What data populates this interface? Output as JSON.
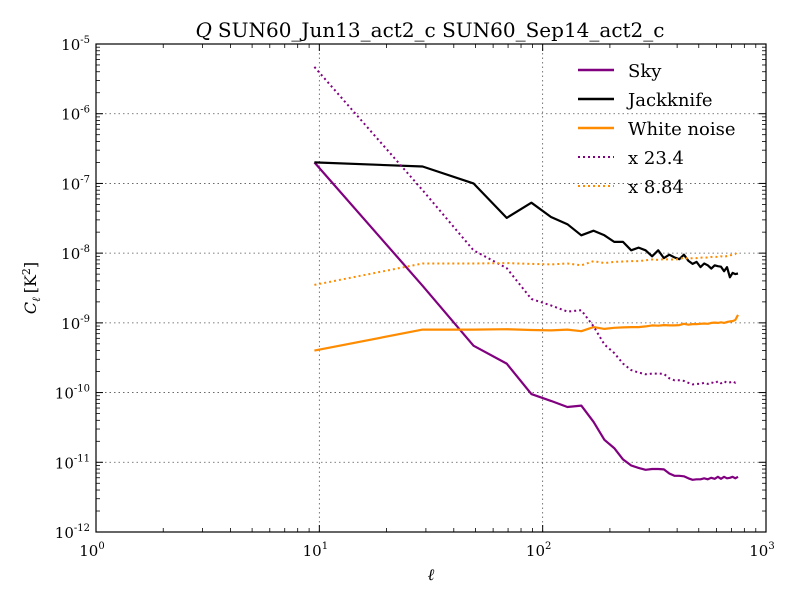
{
  "chart_data": {
    "type": "line",
    "title_symbol": "Q",
    "title_text": "SUN60_Jun13_act2_c SUN60_Sep14_act2_c",
    "xlabel": "ℓ",
    "ylabel_main": "C",
    "ylabel_sub": "ℓ",
    "ylabel_unit": "[K",
    "ylabel_unit_exp": "2",
    "ylabel_unit_close": "]",
    "x_scale": "log",
    "y_scale": "log",
    "xlim": [
      1,
      1000
    ],
    "ylim": [
      1e-12,
      1e-05
    ],
    "grid": true,
    "legend_placement": "top-right",
    "x_ticks": [
      {
        "value": 1,
        "base": "10",
        "exp": "0"
      },
      {
        "value": 10,
        "base": "10",
        "exp": "1"
      },
      {
        "value": 100,
        "base": "10",
        "exp": "2"
      },
      {
        "value": 1000,
        "base": "10",
        "exp": "3"
      }
    ],
    "y_ticks": [
      {
        "value": 1e-12,
        "base": "10",
        "exp": "-12"
      },
      {
        "value": 1e-11,
        "base": "10",
        "exp": "-11"
      },
      {
        "value": 1e-10,
        "base": "10",
        "exp": "-10"
      },
      {
        "value": 1e-09,
        "base": "10",
        "exp": "-9"
      },
      {
        "value": 1e-08,
        "base": "10",
        "exp": "-8"
      },
      {
        "value": 1e-07,
        "base": "10",
        "exp": "-7"
      },
      {
        "value": 1e-06,
        "base": "10",
        "exp": "-6"
      },
      {
        "value": 1e-05,
        "base": "10",
        "exp": "-5"
      }
    ],
    "series": [
      {
        "name": "Sky",
        "color": "#800080",
        "style": "solid",
        "x": [
          9.5,
          29,
          49,
          69,
          89,
          109,
          129,
          149,
          169,
          189,
          209,
          229,
          249,
          269,
          289,
          309,
          329,
          349,
          369,
          389,
          409,
          429,
          449,
          469,
          489,
          509,
          529,
          549,
          569,
          589,
          609,
          629,
          649,
          669,
          689,
          709,
          729,
          749
        ],
        "y": [
          2e-07,
          3.4e-09,
          4.7e-10,
          2.6e-10,
          9.5e-11,
          7.6e-11,
          6.2e-11,
          6.5e-11,
          3.8e-11,
          2.1e-11,
          1.6e-11,
          1.1e-11,
          9e-12,
          8.3e-12,
          7.8e-12,
          8e-12,
          8e-12,
          7.9e-12,
          6.9e-12,
          6.4e-12,
          6.4e-12,
          6.3e-12,
          5.9e-12,
          5.6e-12,
          5.7e-12,
          5.7e-12,
          5.9e-12,
          5.7e-12,
          6e-12,
          5.8e-12,
          6.2e-12,
          5.8e-12,
          6.2e-12,
          5.9e-12,
          6e-12,
          6.2e-12,
          5.9e-12,
          6.2e-12
        ]
      },
      {
        "name": "Jackknife",
        "color": "#000000",
        "style": "solid",
        "x": [
          9.5,
          29,
          49,
          69,
          89,
          109,
          129,
          149,
          169,
          189,
          209,
          229,
          249,
          269,
          289,
          309,
          329,
          349,
          369,
          389,
          409,
          429,
          449,
          469,
          489,
          509,
          529,
          549,
          569,
          589,
          609,
          629,
          649,
          669,
          689,
          709,
          729,
          749
        ],
        "y": [
          2e-07,
          1.75e-07,
          1e-07,
          3.2e-08,
          5.3e-08,
          3.3e-08,
          2.6e-08,
          1.8e-08,
          2.1e-08,
          1.8e-08,
          1.45e-08,
          1.45e-08,
          1.1e-08,
          1.2e-08,
          1.1e-08,
          9e-09,
          1.1e-08,
          8.5e-09,
          9.5e-09,
          8.7e-09,
          8.2e-09,
          9.5e-09,
          7.8e-09,
          7e-09,
          7.5e-09,
          6.3e-09,
          7.1e-09,
          6.7e-09,
          6e-09,
          6.7e-09,
          6.5e-09,
          6.4e-09,
          5.5e-09,
          6.3e-09,
          4.5e-09,
          5.2e-09,
          5e-09,
          5.1e-09
        ]
      },
      {
        "name": "White noise",
        "color": "#ff8c00",
        "style": "solid",
        "x": [
          9.5,
          29,
          49,
          69,
          89,
          109,
          129,
          149,
          169,
          189,
          209,
          229,
          249,
          269,
          289,
          309,
          329,
          349,
          369,
          389,
          409,
          429,
          449,
          469,
          489,
          509,
          529,
          549,
          569,
          589,
          609,
          629,
          649,
          669,
          689,
          709,
          729,
          749
        ],
        "y": [
          4e-10,
          8e-10,
          8e-10,
          8.1e-10,
          7.9e-10,
          7.8e-10,
          8e-10,
          7.6e-10,
          8.7e-10,
          8.2e-10,
          8.5e-10,
          8.6e-10,
          8.7e-10,
          8.7e-10,
          8.9e-10,
          9.2e-10,
          9.1e-10,
          9.3e-10,
          9.2e-10,
          9.2e-10,
          9.3e-10,
          9.7e-10,
          9.4e-10,
          9.6e-10,
          9.6e-10,
          9.7e-10,
          9.8e-10,
          9.7e-10,
          1e-09,
          1.01e-09,
          1e-09,
          1.02e-09,
          1e-09,
          1.03e-09,
          1.05e-09,
          1.06e-09,
          1.1e-09,
          1.3e-09
        ]
      },
      {
        "name": "x 23.4",
        "color": "#800080",
        "style": "dotted",
        "x": [
          9.5,
          29,
          49,
          69,
          89,
          109,
          129,
          149,
          169,
          189,
          209,
          229,
          249,
          269,
          289,
          309,
          329,
          349,
          369,
          389,
          409,
          429,
          449,
          469,
          489,
          509,
          529,
          549,
          569,
          589,
          609,
          629,
          649,
          669,
          689,
          709,
          729,
          749
        ],
        "y": [
          4.7e-06,
          8e-08,
          1.1e-08,
          6.1e-09,
          2.2e-09,
          1.78e-09,
          1.45e-09,
          1.52e-09,
          8.9e-10,
          4.9e-10,
          3.7e-10,
          2.6e-10,
          2.1e-10,
          1.94e-10,
          1.83e-10,
          1.87e-10,
          1.87e-10,
          1.85e-10,
          1.6e-10,
          1.5e-10,
          1.5e-10,
          1.47e-10,
          1.38e-10,
          1.31e-10,
          1.33e-10,
          1.33e-10,
          1.38e-10,
          1.33e-10,
          1.4e-10,
          1.36e-10,
          1.45e-10,
          1.36e-10,
          1.45e-10,
          1.38e-10,
          1.4e-10,
          1.45e-10,
          1.38e-10,
          1.45e-10
        ]
      },
      {
        "name": "x 8.84",
        "color": "#ff8c00",
        "style": "dotted",
        "x": [
          9.5,
          29,
          49,
          69,
          89,
          109,
          129,
          149,
          169,
          189,
          209,
          229,
          249,
          269,
          289,
          309,
          329,
          349,
          369,
          389,
          409,
          429,
          449,
          469,
          489,
          509,
          529,
          549,
          569,
          589,
          609,
          629,
          649,
          669,
          689,
          709,
          729,
          749
        ],
        "y": [
          3.5e-09,
          7.1e-09,
          7.1e-09,
          7.2e-09,
          7e-09,
          6.9e-09,
          7.1e-09,
          6.7e-09,
          7.7e-09,
          7.2e-09,
          7.5e-09,
          7.6e-09,
          7.7e-09,
          7.7e-09,
          7.9e-09,
          8.1e-09,
          8e-09,
          8.2e-09,
          8.1e-09,
          8.1e-09,
          8.2e-09,
          8.6e-09,
          8.3e-09,
          8.5e-09,
          8.5e-09,
          8.6e-09,
          8.7e-09,
          8.6e-09,
          8.8e-09,
          8.9e-09,
          8.8e-09,
          9e-09,
          8.8e-09,
          9.1e-09,
          9.3e-09,
          9.4e-09,
          9.7e-09,
          1.1e-08
        ]
      }
    ]
  }
}
